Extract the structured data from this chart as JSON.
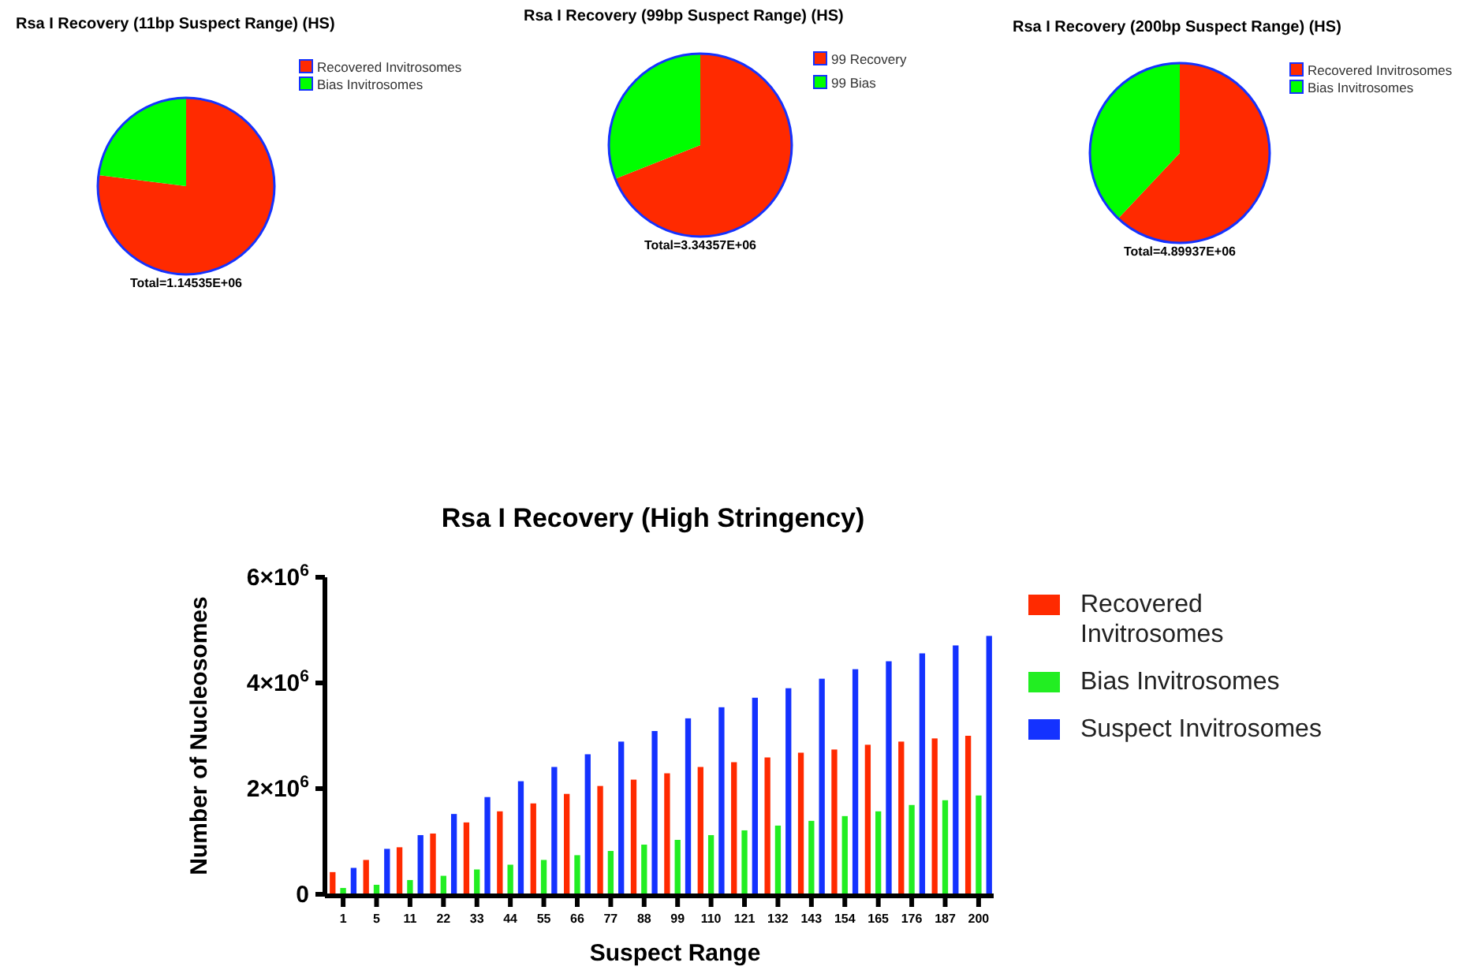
{
  "chart_data": [
    {
      "type": "pie",
      "title": "Rsa I Recovery (11bp Suspect Range) (HS)",
      "categories": [
        "Recovered Invitrosomes",
        "Bias Invitrosomes"
      ],
      "values": [
        77,
        23
      ],
      "colors": [
        "#ff2a00",
        "#00ff00"
      ],
      "legend": "right",
      "annotations": [
        "Total=1.14535E+06"
      ]
    },
    {
      "type": "pie",
      "title": "Rsa I Recovery (99bp Suspect Range) (HS)",
      "categories": [
        "99 Recovery",
        "99 Bias"
      ],
      "values": [
        69,
        31
      ],
      "colors": [
        "#ff2a00",
        "#00ff00"
      ],
      "legend": "right",
      "annotations": [
        "Total=3.34357E+06"
      ]
    },
    {
      "type": "pie",
      "title": "Rsa I Recovery (200bp Suspect Range) (HS)",
      "categories": [
        "Recovered Invitrosomes",
        "Bias Invitrosomes"
      ],
      "values": [
        62,
        38
      ],
      "colors": [
        "#ff2a00",
        "#00ff00"
      ],
      "legend": "right",
      "annotations": [
        "Total=4.89937E+06"
      ]
    },
    {
      "type": "bar",
      "title": "Rsa I Recovery (High Stringency)",
      "xlabel": "Suspect Range",
      "ylabel": "Number of Nucleosomes",
      "categories": [
        "1",
        "5",
        "11",
        "22",
        "33",
        "44",
        "55",
        "66",
        "77",
        "88",
        "99",
        "110",
        "121",
        "132",
        "143",
        "154",
        "165",
        "176",
        "187",
        "200"
      ],
      "ylim": [
        0,
        6000000
      ],
      "yticks": [
        0,
        {
          "value": 2000000,
          "label": "2×10$^{6}$"
        },
        {
          "value": 4000000,
          "label": "4×10$^{6}$"
        },
        {
          "value": 6000000,
          "label": "6×10$^{6}$"
        }
      ],
      "legend": "right",
      "series": [
        {
          "name": "Recovered Invitrosomes",
          "color": "#ff2a00",
          "values": [
            420000,
            650000,
            890000,
            1150000,
            1360000,
            1570000,
            1720000,
            1900000,
            2050000,
            2170000,
            2290000,
            2410000,
            2500000,
            2590000,
            2680000,
            2740000,
            2830000,
            2890000,
            2950000,
            3000000
          ]
        },
        {
          "name": "Bias Invitrosomes",
          "color": "#22ee22",
          "values": [
            120000,
            180000,
            270000,
            350000,
            470000,
            560000,
            650000,
            740000,
            820000,
            940000,
            1030000,
            1120000,
            1210000,
            1300000,
            1390000,
            1480000,
            1570000,
            1690000,
            1780000,
            1870000
          ]
        },
        {
          "name": "Suspect Invitrosomes",
          "color": "#1432ff",
          "values": [
            500000,
            860000,
            1120000,
            1520000,
            1840000,
            2140000,
            2410000,
            2650000,
            2890000,
            3090000,
            3330000,
            3540000,
            3720000,
            3900000,
            4080000,
            4260000,
            4410000,
            4560000,
            4710000,
            4890000
          ]
        }
      ]
    }
  ]
}
